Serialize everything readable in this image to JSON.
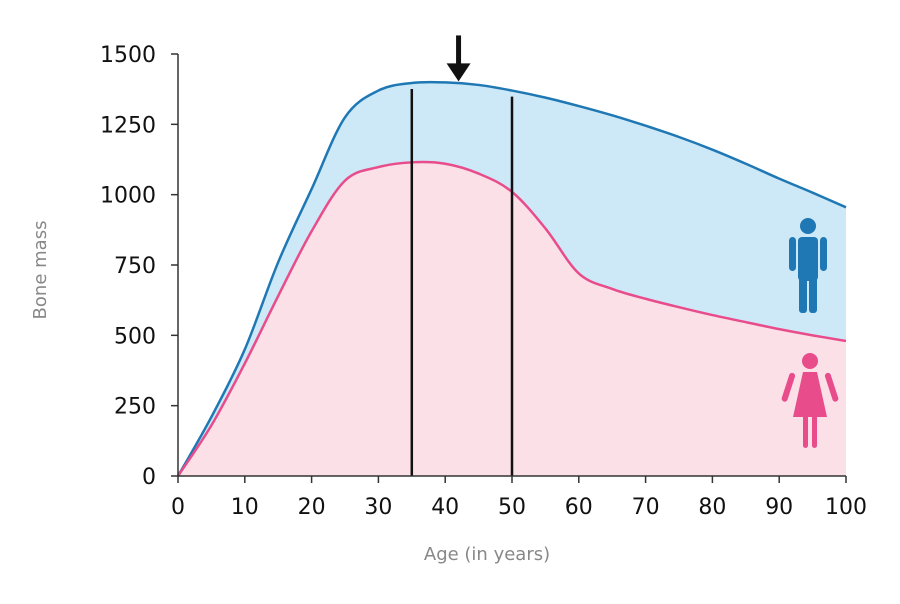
{
  "chart_data": {
    "type": "area",
    "title": "",
    "xlabel": "Age (in years)",
    "ylabel": "Bone mass",
    "xlim": [
      0,
      100
    ],
    "ylim": [
      0,
      1500
    ],
    "xticks": [
      0,
      10,
      20,
      30,
      40,
      50,
      60,
      70,
      80,
      90,
      100
    ],
    "yticks": [
      0,
      250,
      500,
      750,
      1000,
      1250,
      1500
    ],
    "grid": false,
    "legend": "icons at right",
    "series": [
      {
        "icon": "man-icon",
        "color": "#1f78b4",
        "fill": "#cde9f8",
        "x": [
          0,
          5,
          10,
          15,
          20,
          25,
          30,
          35,
          40,
          45,
          50,
          55,
          60,
          65,
          70,
          75,
          80,
          85,
          90,
          95,
          100
        ],
        "values": [
          0,
          210,
          450,
          760,
          1020,
          1275,
          1370,
          1397,
          1399,
          1390,
          1370,
          1345,
          1315,
          1282,
          1245,
          1205,
          1160,
          1110,
          1057,
          1007,
          955
        ]
      },
      {
        "icon": "woman-icon",
        "color": "#e84c8a",
        "fill": "#fbe0e8",
        "x": [
          0,
          5,
          10,
          15,
          20,
          25,
          30,
          35,
          40,
          45,
          50,
          55,
          60,
          65,
          70,
          75,
          80,
          85,
          90,
          95,
          100
        ],
        "values": [
          0,
          180,
          400,
          640,
          870,
          1050,
          1098,
          1115,
          1110,
          1075,
          1010,
          880,
          720,
          665,
          630,
          600,
          572,
          547,
          522,
          500,
          480
        ]
      }
    ],
    "vertical_lines": [
      35,
      50
    ],
    "arrow_at": 42
  }
}
